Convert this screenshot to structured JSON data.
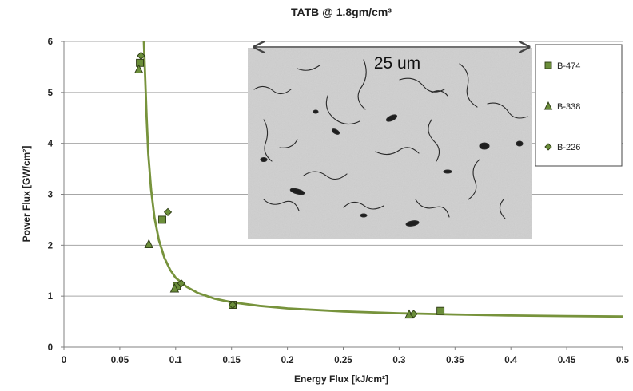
{
  "chart_data": {
    "type": "scatter",
    "title": "TATB @ 1.8gm/cm³",
    "xlabel": "Energy Flux [kJ/cm²]",
    "ylabel": "Power Flux [GW/cm²]",
    "xlim": [
      0,
      0.5
    ],
    "ylim": [
      0,
      6
    ],
    "x_ticks": [
      "0",
      "0.05",
      "0.1",
      "0.15",
      "0.2",
      "0.25",
      "0.3",
      "0.35",
      "0.4",
      "0.45",
      "0.5"
    ],
    "y_ticks": [
      "0",
      "1",
      "2",
      "3",
      "4",
      "5",
      "6"
    ],
    "grid": "horizontal",
    "legend_position": "right",
    "series": [
      {
        "name": "B-474",
        "marker": "square",
        "color": "#6b8e3a",
        "points": [
          {
            "x": 0.068,
            "y": 5.58
          },
          {
            "x": 0.088,
            "y": 2.5
          },
          {
            "x": 0.101,
            "y": 1.2
          },
          {
            "x": 0.151,
            "y": 0.83
          },
          {
            "x": 0.337,
            "y": 0.71
          }
        ]
      },
      {
        "name": "B-338",
        "marker": "triangle",
        "color": "#6b8e3a",
        "points": [
          {
            "x": 0.067,
            "y": 5.45
          },
          {
            "x": 0.076,
            "y": 2.02
          },
          {
            "x": 0.099,
            "y": 1.15
          },
          {
            "x": 0.309,
            "y": 0.64
          }
        ]
      },
      {
        "name": "B-226",
        "marker": "diamond",
        "color": "#6b8e3a",
        "points": [
          {
            "x": 0.069,
            "y": 5.72
          },
          {
            "x": 0.093,
            "y": 2.65
          },
          {
            "x": 0.105,
            "y": 1.25
          },
          {
            "x": 0.151,
            "y": 0.83
          },
          {
            "x": 0.313,
            "y": 0.65
          }
        ]
      }
    ],
    "fit_curve": {
      "color": "#77933c",
      "points": [
        [
          0.0715,
          6.0
        ],
        [
          0.0725,
          5.4
        ],
        [
          0.074,
          4.5
        ],
        [
          0.0755,
          3.8
        ],
        [
          0.078,
          3.1
        ],
        [
          0.081,
          2.55
        ],
        [
          0.085,
          2.1
        ],
        [
          0.09,
          1.75
        ],
        [
          0.095,
          1.52
        ],
        [
          0.1,
          1.36
        ],
        [
          0.11,
          1.18
        ],
        [
          0.12,
          1.06
        ],
        [
          0.135,
          0.95
        ],
        [
          0.15,
          0.88
        ],
        [
          0.175,
          0.81
        ],
        [
          0.2,
          0.76
        ],
        [
          0.25,
          0.7
        ],
        [
          0.3,
          0.665
        ],
        [
          0.35,
          0.64
        ],
        [
          0.4,
          0.62
        ],
        [
          0.45,
          0.61
        ],
        [
          0.5,
          0.6
        ]
      ]
    },
    "inset_annotation": "25 um"
  }
}
